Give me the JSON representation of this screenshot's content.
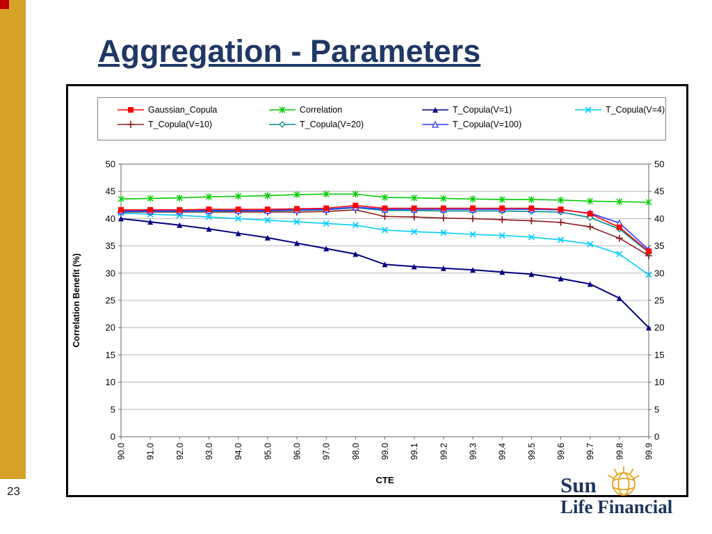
{
  "slide": {
    "title": "Aggregation - Parameters",
    "page_number": "23",
    "logo": {
      "line1": "Sun",
      "line2": "Life Financial"
    },
    "accent_colors": {
      "gold_bar": "#D5A227",
      "corner_square": "#C00000",
      "title_navy": "#1F3864"
    }
  },
  "chart_data": {
    "type": "line",
    "title": "",
    "xlabel": "CTE",
    "ylabel": "Correlation Benefit (%)",
    "ylim": [
      0,
      50
    ],
    "ytick_step": 5,
    "grid": "horizontal",
    "legend_position": "top",
    "categories": [
      "90.0",
      "91.0",
      "92.0",
      "93.0",
      "94.0",
      "95.0",
      "96.0",
      "97.0",
      "98.0",
      "99.0",
      "99.1",
      "99.2",
      "99.3",
      "99.4",
      "99.5",
      "99.6",
      "99.7",
      "99.8",
      "99.9"
    ],
    "series": [
      {
        "name": "Gaussian_Copula",
        "color": "#FF0000",
        "marker": "square",
        "values": [
          41.6,
          41.6,
          41.6,
          41.7,
          41.7,
          41.7,
          41.8,
          41.9,
          42.4,
          41.9,
          41.9,
          41.9,
          41.9,
          41.9,
          41.9,
          41.7,
          40.9,
          38.4,
          34.0
        ]
      },
      {
        "name": "Correlation",
        "color": "#00CC00",
        "marker": "star",
        "values": [
          43.6,
          43.7,
          43.8,
          44.0,
          44.1,
          44.2,
          44.4,
          44.5,
          44.5,
          43.9,
          43.8,
          43.7,
          43.6,
          43.5,
          43.5,
          43.4,
          43.2,
          43.1,
          43.0
        ]
      },
      {
        "name": "T_Copula(V=1)",
        "color": "#000080",
        "marker": "triangle",
        "values": [
          40.0,
          39.4,
          38.8,
          38.1,
          37.3,
          36.5,
          35.5,
          34.5,
          33.5,
          31.6,
          31.2,
          30.9,
          30.6,
          30.2,
          29.8,
          29.0,
          28.0,
          25.4,
          20.0
        ]
      },
      {
        "name": "T_Copula(V=4)",
        "color": "#00CCFF",
        "marker": "x",
        "values": [
          41.0,
          40.8,
          40.6,
          40.3,
          40.0,
          39.7,
          39.4,
          39.1,
          38.8,
          37.9,
          37.6,
          37.4,
          37.1,
          36.9,
          36.6,
          36.1,
          35.3,
          33.5,
          29.7
        ]
      },
      {
        "name": "T_Copula(V=10)",
        "color": "#8B1A1A",
        "marker": "plus",
        "values": [
          41.2,
          41.2,
          41.2,
          41.2,
          41.2,
          41.2,
          41.2,
          41.3,
          41.6,
          40.4,
          40.3,
          40.1,
          40.0,
          39.8,
          39.6,
          39.3,
          38.5,
          36.4,
          33.2
        ]
      },
      {
        "name": "T_Copula(V=20)",
        "color": "#008B8B",
        "marker": "diamond-open",
        "values": [
          41.3,
          41.3,
          41.3,
          41.3,
          41.4,
          41.4,
          41.5,
          41.6,
          42.0,
          41.5,
          41.5,
          41.4,
          41.4,
          41.4,
          41.3,
          41.2,
          40.2,
          38.1,
          33.8
        ]
      },
      {
        "name": "T_Copula(V=100)",
        "color": "#3333FF",
        "marker": "triangle-open",
        "values": [
          41.4,
          41.4,
          41.4,
          41.5,
          41.5,
          41.5,
          41.6,
          41.7,
          42.1,
          41.7,
          41.7,
          41.7,
          41.7,
          41.7,
          41.7,
          41.6,
          41.0,
          39.2,
          34.3
        ]
      }
    ]
  }
}
